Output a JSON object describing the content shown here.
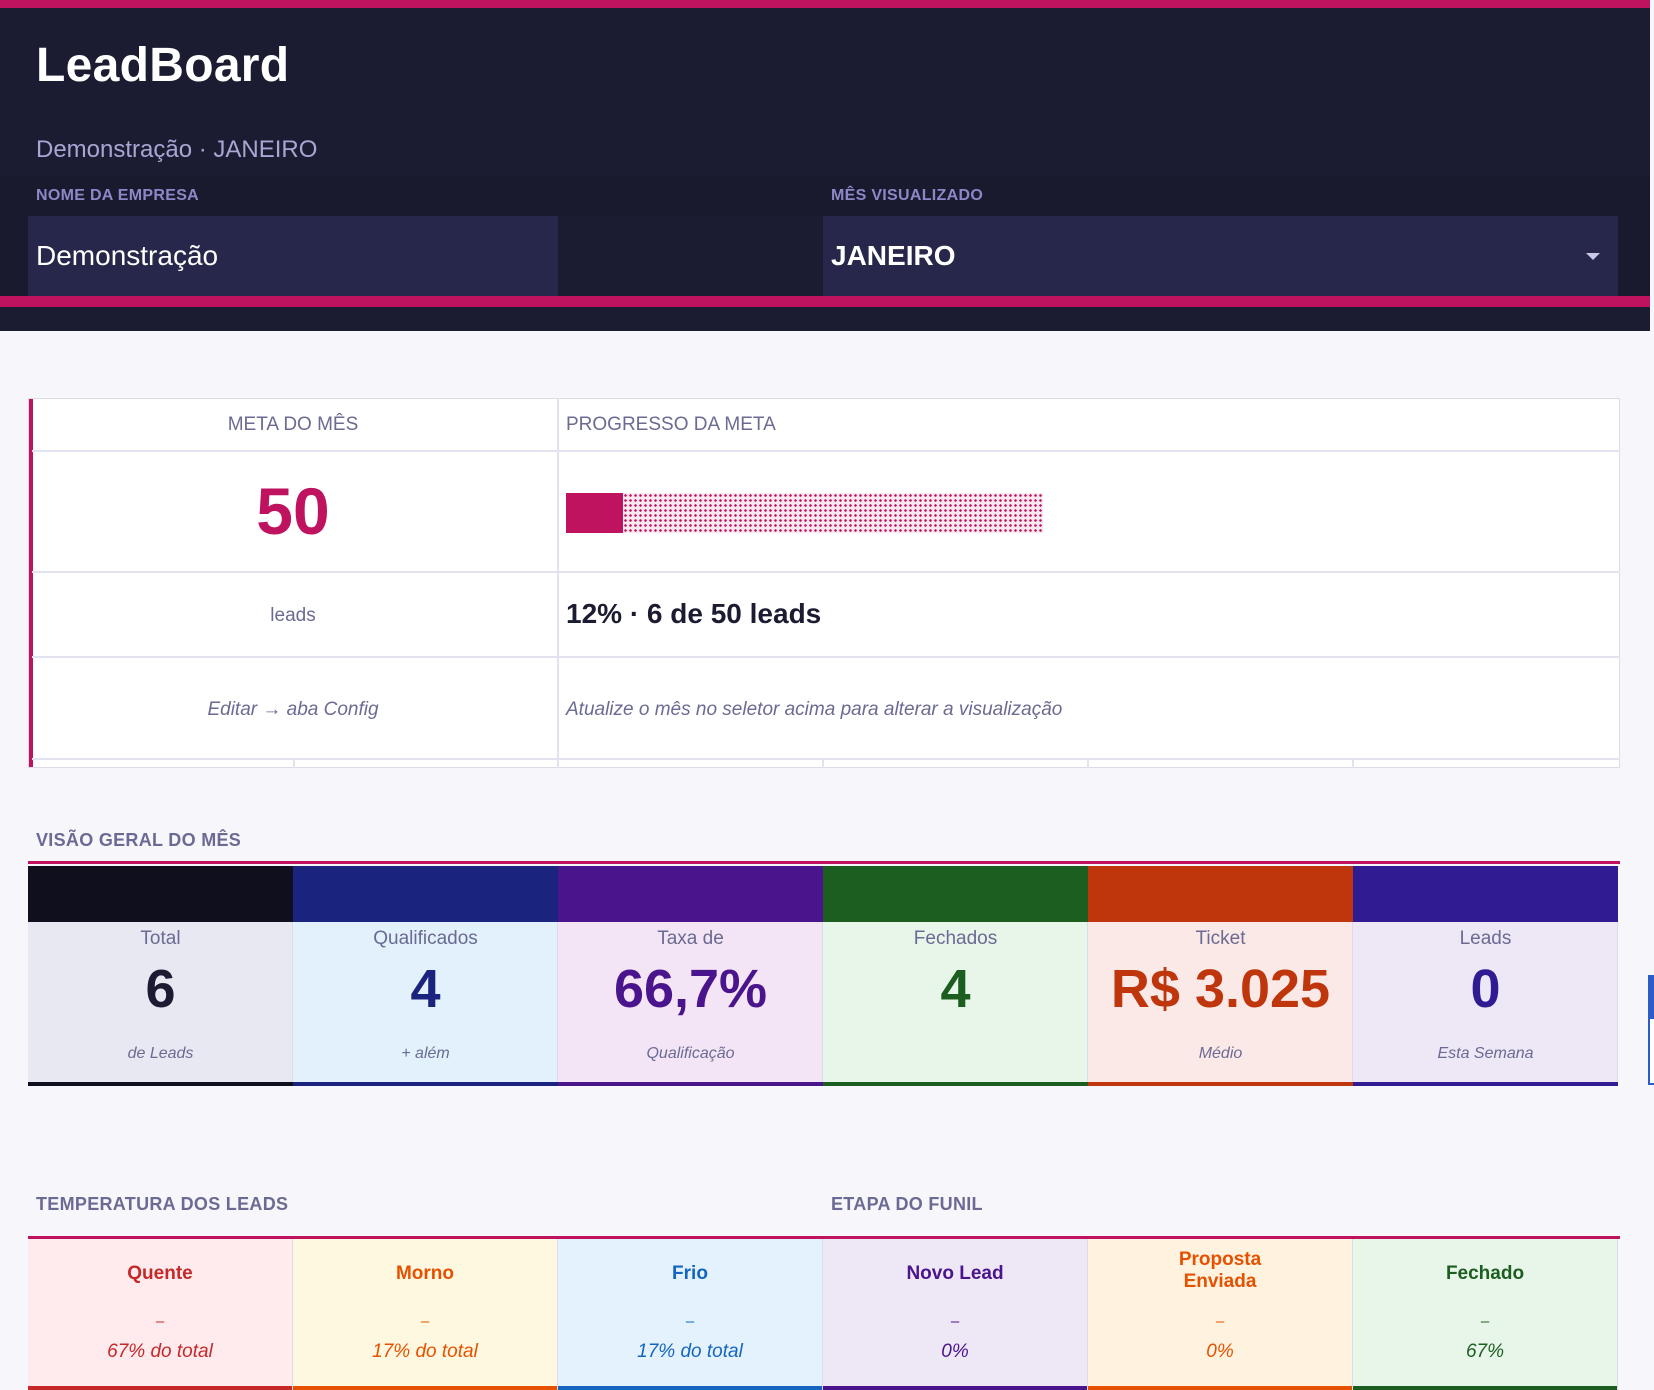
{
  "header": {
    "brand": "LeadBoard",
    "subtitle": "Demonstração · JANEIRO",
    "company_label": "NOME DA EMPRESA",
    "company_value": "Demonstração",
    "month_label": "MÊS VISUALIZADO",
    "month_value": "JANEIRO",
    "accent_color": "#c0135f"
  },
  "meta": {
    "goal_header": "META DO MÊS",
    "progress_header": "PROGRESSO DA META",
    "goal_value": "50",
    "goal_unit": "leads",
    "progress_fraction": 0.12,
    "progress_text": "12% · 6 de 50 leads",
    "edit_hint": "Editar → aba Config",
    "month_hint": "Atualize o mês no seletor acima para alterar a visualização"
  },
  "overview": {
    "title": "VISÃO GERAL DO MÊS",
    "cards": [
      {
        "label": "Total",
        "value": "6",
        "sub": "de Leads",
        "color": "#0f0f1e",
        "bg": "#e8e8f3",
        "value_color": "#1b1b31"
      },
      {
        "label": "Qualificados",
        "value": "4",
        "sub": "+ além",
        "color": "#1a237e",
        "bg": "#e2f1fc",
        "value_color": "#1a237e"
      },
      {
        "label": "Taxa de",
        "value": "66,7%",
        "sub": "Qualificação",
        "color": "#4a148c",
        "bg": "#f3e5f5",
        "value_color": "#4a148c"
      },
      {
        "label": "Fechados",
        "value": "4",
        "sub": "",
        "color": "#1b5e20",
        "bg": "#e8f5e9",
        "value_color": "#1b5e20"
      },
      {
        "label": "Ticket",
        "value": "R$ 3.025",
        "sub": "Médio",
        "color": "#bf360c",
        "bg": "#fbe9e7",
        "value_color": "#bf360c"
      },
      {
        "label": "Leads",
        "value": "0",
        "sub": "Esta Semana",
        "color": "#311b92",
        "bg": "#ede7f6",
        "value_color": "#311b92"
      }
    ]
  },
  "temperature": {
    "title": "TEMPERATURA DOS LEADS",
    "items": [
      {
        "name": "Quente",
        "dash": "–",
        "pct": "67% do total",
        "color": "#c62828",
        "bg": "#ffebee"
      },
      {
        "name": "Morno",
        "dash": "–",
        "pct": "17% do total",
        "color": "#e65100",
        "bg": "#fff8e1"
      },
      {
        "name": "Frio",
        "dash": "–",
        "pct": "17% do total",
        "color": "#1565c0",
        "bg": "#e3f2fd"
      }
    ]
  },
  "funnel": {
    "title": "ETAPA DO FUNIL",
    "items": [
      {
        "name": "Novo Lead",
        "dash": "–",
        "pct": "0%",
        "color": "#4a148c",
        "bg": "#ede7f6"
      },
      {
        "name": "Proposta Enviada",
        "dash": "–",
        "pct": "0%",
        "color": "#e65100",
        "bg": "#fff3e0"
      },
      {
        "name": "Fechado",
        "dash": "–",
        "pct": "67%",
        "color": "#1b5e20",
        "bg": "#e8f5e9"
      }
    ]
  }
}
